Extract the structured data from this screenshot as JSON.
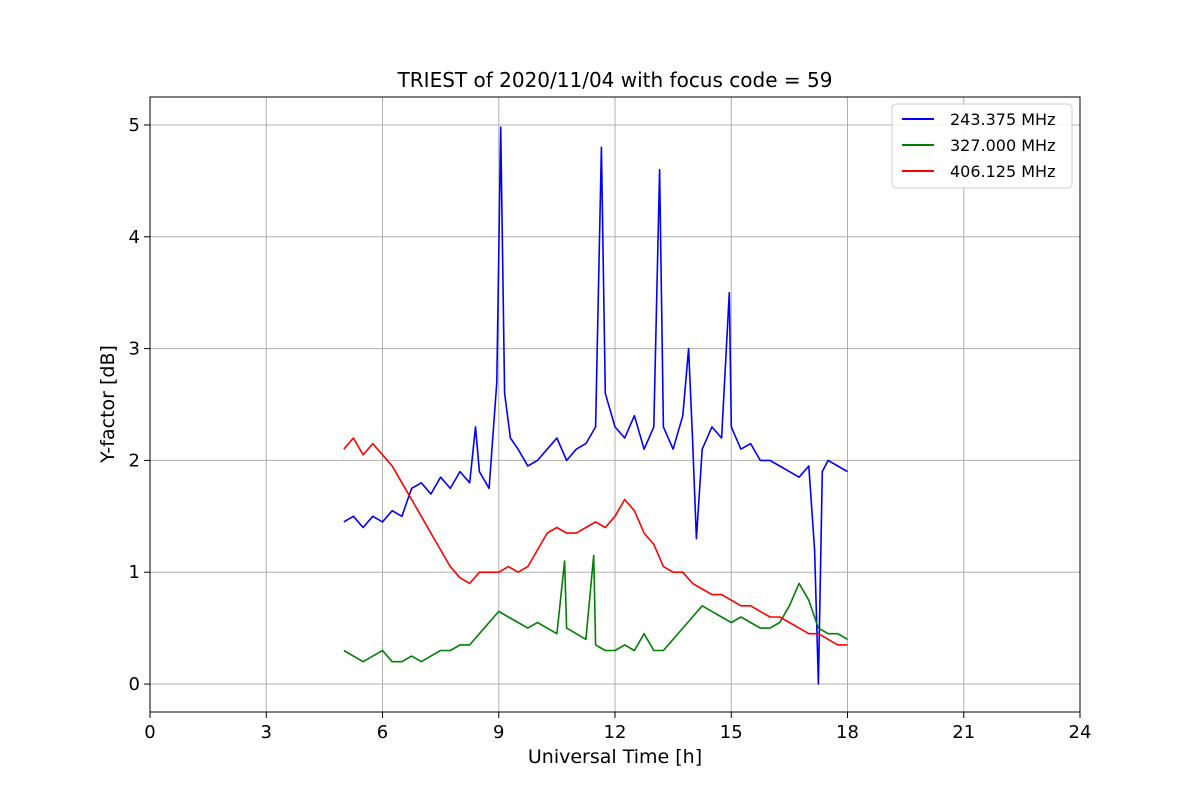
{
  "chart_data": {
    "type": "line",
    "title": "TRIEST of 2020/11/04 with focus code = 59",
    "xlabel": "Universal Time [h]",
    "ylabel": "Y-factor [dB]",
    "xlim": [
      0,
      24
    ],
    "ylim": [
      -0.25,
      5.25
    ],
    "xticks": [
      0,
      3,
      6,
      9,
      12,
      15,
      18,
      21,
      24
    ],
    "yticks": [
      0,
      1,
      2,
      3,
      4,
      5
    ],
    "grid": true,
    "legend_position": "top-right",
    "series": [
      {
        "name": "243.375 MHz",
        "color": "#0000ff",
        "x": [
          5.0,
          5.25,
          5.5,
          5.75,
          6.0,
          6.25,
          6.5,
          6.75,
          7.0,
          7.25,
          7.5,
          7.75,
          8.0,
          8.25,
          8.4,
          8.5,
          8.75,
          8.95,
          9.05,
          9.15,
          9.3,
          9.5,
          9.75,
          10.0,
          10.25,
          10.5,
          10.75,
          11.0,
          11.25,
          11.5,
          11.65,
          11.75,
          12.0,
          12.25,
          12.5,
          12.75,
          13.0,
          13.15,
          13.25,
          13.5,
          13.75,
          13.9,
          14.0,
          14.1,
          14.25,
          14.5,
          14.75,
          14.95,
          15.0,
          15.25,
          15.5,
          15.75,
          16.0,
          16.25,
          16.5,
          16.75,
          17.0,
          17.15,
          17.25,
          17.35,
          17.5,
          17.75,
          18.0
        ],
        "values": [
          1.45,
          1.5,
          1.4,
          1.5,
          1.45,
          1.55,
          1.5,
          1.75,
          1.8,
          1.7,
          1.85,
          1.75,
          1.9,
          1.8,
          2.3,
          1.9,
          1.75,
          2.7,
          4.98,
          2.6,
          2.2,
          2.1,
          1.95,
          2.0,
          2.1,
          2.2,
          2.0,
          2.1,
          2.15,
          2.3,
          4.8,
          2.6,
          2.3,
          2.2,
          2.4,
          2.1,
          2.3,
          4.6,
          2.3,
          2.1,
          2.4,
          3.0,
          2.2,
          1.3,
          2.1,
          2.3,
          2.2,
          3.5,
          2.3,
          2.1,
          2.15,
          2.0,
          2.0,
          1.95,
          1.9,
          1.85,
          1.95,
          1.2,
          0.0,
          1.9,
          2.0,
          1.95,
          1.9
        ]
      },
      {
        "name": "327.000 MHz",
        "color": "#008000",
        "x": [
          5.0,
          5.25,
          5.5,
          5.75,
          6.0,
          6.25,
          6.5,
          6.75,
          7.0,
          7.25,
          7.5,
          7.75,
          8.0,
          8.25,
          8.5,
          8.75,
          9.0,
          9.25,
          9.5,
          9.75,
          10.0,
          10.25,
          10.5,
          10.7,
          10.75,
          11.0,
          11.25,
          11.45,
          11.5,
          11.75,
          12.0,
          12.25,
          12.5,
          12.75,
          13.0,
          13.25,
          13.5,
          13.75,
          14.0,
          14.25,
          14.5,
          14.75,
          15.0,
          15.25,
          15.5,
          15.75,
          16.0,
          16.25,
          16.5,
          16.75,
          17.0,
          17.25,
          17.5,
          17.75,
          18.0
        ],
        "values": [
          0.3,
          0.25,
          0.2,
          0.25,
          0.3,
          0.2,
          0.2,
          0.25,
          0.2,
          0.25,
          0.3,
          0.3,
          0.35,
          0.35,
          0.45,
          0.55,
          0.65,
          0.6,
          0.55,
          0.5,
          0.55,
          0.5,
          0.45,
          1.1,
          0.5,
          0.45,
          0.4,
          1.15,
          0.35,
          0.3,
          0.3,
          0.35,
          0.3,
          0.45,
          0.3,
          0.3,
          0.4,
          0.5,
          0.6,
          0.7,
          0.65,
          0.6,
          0.55,
          0.6,
          0.55,
          0.5,
          0.5,
          0.55,
          0.7,
          0.9,
          0.75,
          0.5,
          0.45,
          0.45,
          0.4
        ]
      },
      {
        "name": "406.125 MHz",
        "color": "#ff0000",
        "x": [
          5.0,
          5.25,
          5.5,
          5.75,
          6.0,
          6.25,
          6.5,
          6.75,
          7.0,
          7.25,
          7.5,
          7.75,
          8.0,
          8.25,
          8.5,
          8.75,
          9.0,
          9.25,
          9.5,
          9.75,
          10.0,
          10.25,
          10.5,
          10.75,
          11.0,
          11.25,
          11.5,
          11.75,
          12.0,
          12.25,
          12.5,
          12.75,
          13.0,
          13.25,
          13.5,
          13.75,
          14.0,
          14.25,
          14.5,
          14.75,
          15.0,
          15.25,
          15.5,
          15.75,
          16.0,
          16.25,
          16.5,
          16.75,
          17.0,
          17.25,
          17.5,
          17.75,
          18.0
        ],
        "values": [
          2.1,
          2.2,
          2.05,
          2.15,
          2.05,
          1.95,
          1.8,
          1.65,
          1.5,
          1.35,
          1.2,
          1.05,
          0.95,
          0.9,
          1.0,
          1.0,
          1.0,
          1.05,
          1.0,
          1.05,
          1.2,
          1.35,
          1.4,
          1.35,
          1.35,
          1.4,
          1.45,
          1.4,
          1.5,
          1.65,
          1.55,
          1.35,
          1.25,
          1.05,
          1.0,
          1.0,
          0.9,
          0.85,
          0.8,
          0.8,
          0.75,
          0.7,
          0.7,
          0.65,
          0.6,
          0.6,
          0.55,
          0.5,
          0.45,
          0.45,
          0.4,
          0.35,
          0.35
        ]
      }
    ]
  }
}
